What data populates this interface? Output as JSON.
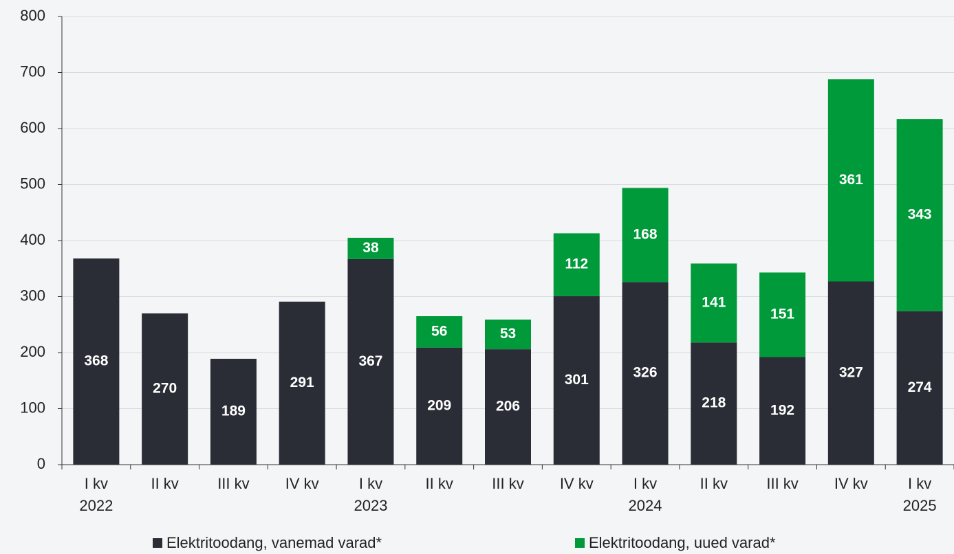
{
  "chart_data": {
    "type": "stacked_bar",
    "categories": [
      "I kv\n2022",
      "II kv",
      "III kv",
      "IV kv",
      "I kv\n2023",
      "II kv",
      "III kv",
      "IV kv",
      "I kv\n2024",
      "II kv",
      "III kv",
      "IV kv",
      "I kv\n2025"
    ],
    "series": [
      {
        "name": "Elektritoodang, vanemad varad*",
        "color": "#2b2d36",
        "values": [
          368,
          270,
          189,
          291,
          367,
          209,
          206,
          301,
          326,
          218,
          192,
          327,
          274
        ]
      },
      {
        "name": "Elektritoodang, uued varad*",
        "color": "#009a3a",
        "values": [
          null,
          null,
          null,
          null,
          38,
          56,
          53,
          112,
          168,
          141,
          151,
          361,
          343
        ]
      }
    ],
    "ylim": [
      0,
      800
    ],
    "yticks": [
      0,
      100,
      200,
      300,
      400,
      500,
      600,
      700,
      800
    ],
    "grid": true,
    "legend": "bottom"
  }
}
